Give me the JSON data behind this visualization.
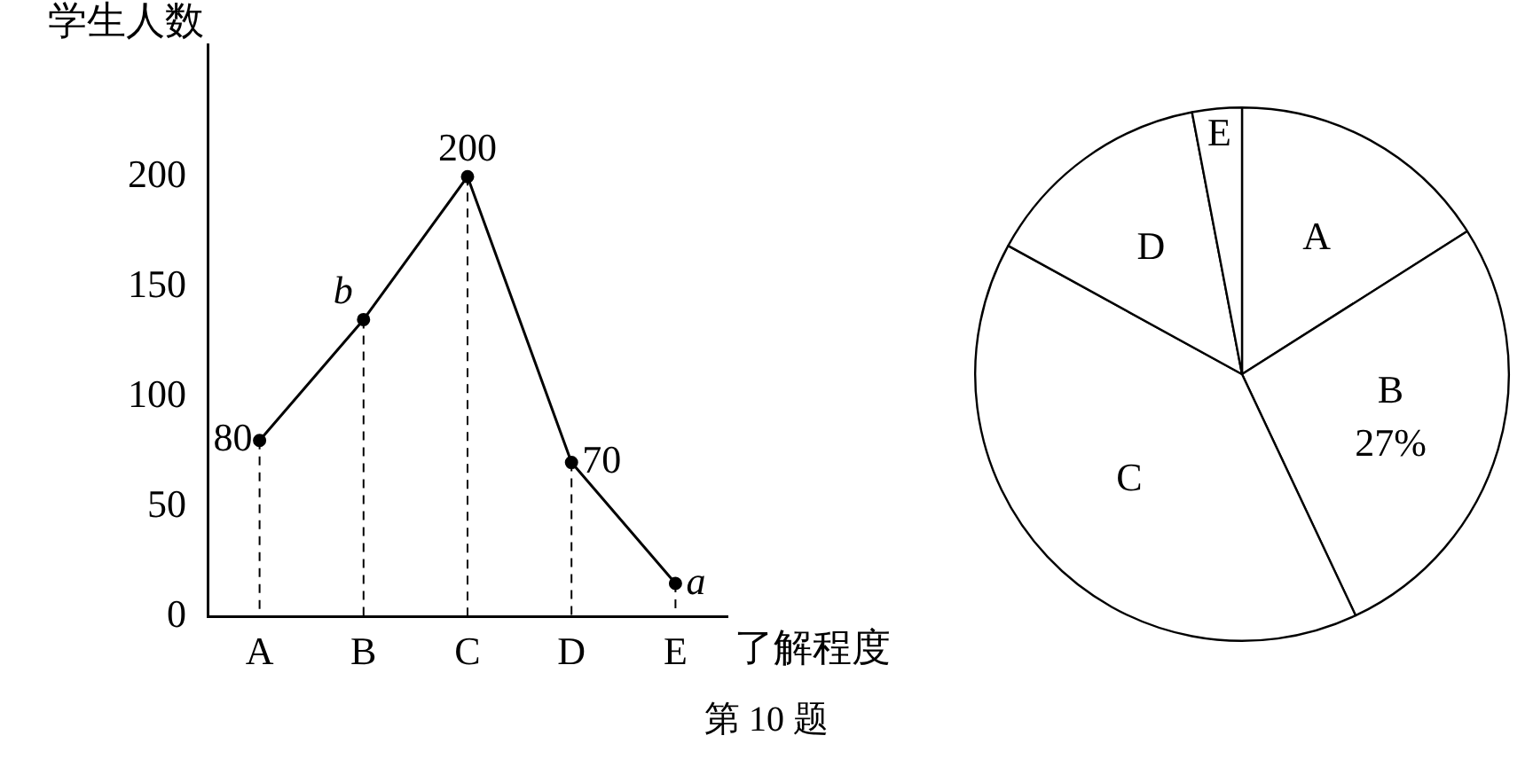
{
  "chart_data": [
    {
      "type": "line",
      "ylabel": "学生人数",
      "xlabel": "了解程度",
      "categories": [
        "A",
        "B",
        "C",
        "D",
        "E"
      ],
      "series": [
        {
          "color": "#000000",
          "values": [
            80,
            135,
            200,
            70,
            15
          ],
          "value_labels": [
            "80",
            "b",
            "200",
            "70",
            "a"
          ]
        }
      ],
      "ylim": [
        0,
        260
      ],
      "yticks": [
        0,
        50,
        100,
        150,
        200
      ],
      "grid": "x",
      "legend": false,
      "marker": "circle",
      "line_style": "solid",
      "annotations": [
        "第 10 题"
      ]
    },
    {
      "type": "pie",
      "categories": [
        "A",
        "B",
        "C",
        "D",
        "E"
      ],
      "values": [
        16,
        27,
        40,
        14,
        3
      ],
      "colors": [
        "#ffffff",
        "#ffffff",
        "#ffffff",
        "#ffffff",
        "#ffffff"
      ],
      "value_labels": [
        null,
        "27%",
        null,
        null,
        null
      ],
      "legend": false
    }
  ]
}
